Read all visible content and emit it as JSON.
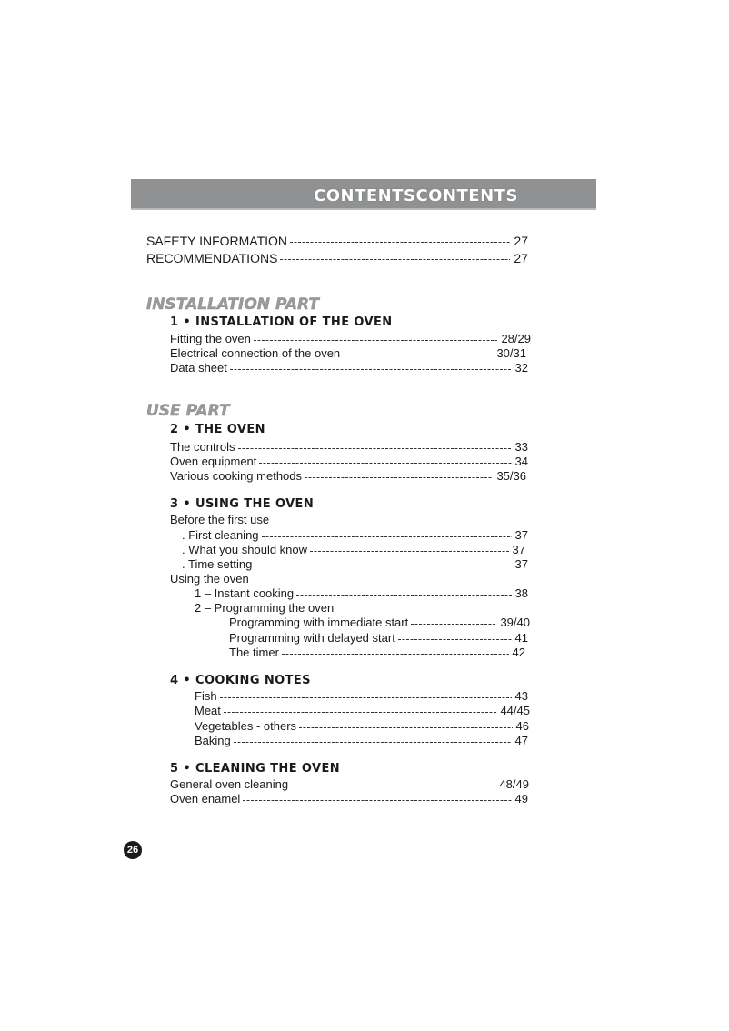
{
  "header": {
    "title": "CONTENTSCONTENTS",
    "color": "#8f9192"
  },
  "top_entries": [
    {
      "label": "SAFETY INFORMATION",
      "page": "27"
    },
    {
      "label": "RECOMMENDATIONS",
      "page": "27"
    }
  ],
  "installation_part": {
    "title": "INSTALLATION PART",
    "section1": {
      "title": "1 • INSTALLATION OF THE OVEN",
      "entries": [
        {
          "label": "Fitting the oven",
          "page": "28/29"
        },
        {
          "label": "Electrical connection of the oven",
          "page": "30/31"
        },
        {
          "label": "Data sheet",
          "page": "32"
        }
      ]
    }
  },
  "use_part": {
    "title": "USE PART",
    "section2": {
      "title": "2 • THE OVEN",
      "entries": [
        {
          "label": "The controls",
          "page": "33"
        },
        {
          "label": "Oven equipment",
          "page": "34"
        },
        {
          "label": "Various cooking methods",
          "page": "35/36"
        }
      ]
    },
    "section3": {
      "title": "3 • USING THE OVEN",
      "before_first_use": "Before the first use",
      "entries_a": [
        {
          "label": ". First cleaning",
          "page": "37"
        },
        {
          "label": ". What you should know",
          "page": "37"
        },
        {
          "label": ". Time setting",
          "page": "37"
        }
      ],
      "using_the_oven": "Using the oven",
      "instant": {
        "label": "1 – Instant cooking",
        "page": "38"
      },
      "programming": "2 – Programming the oven",
      "entries_b": [
        {
          "label": "Programming with immediate start",
          "page": "39/40"
        },
        {
          "label": "Programming with delayed start",
          "page": "41"
        },
        {
          "label": "The timer",
          "page": "42"
        }
      ]
    },
    "section4": {
      "title": "4 • COOKING NOTES",
      "entries": [
        {
          "label": "Fish",
          "page": "43"
        },
        {
          "label": "Meat",
          "page": "44/45"
        },
        {
          "label": "Vegetables - others",
          "page": "46"
        },
        {
          "label": "Baking",
          "page": "47"
        }
      ]
    },
    "section5": {
      "title": "5 • CLEANING THE OVEN",
      "entries": [
        {
          "label": "General oven cleaning",
          "page": "48/49"
        },
        {
          "label": "Oven enamel",
          "page": "49"
        }
      ]
    }
  },
  "page_number": "26"
}
